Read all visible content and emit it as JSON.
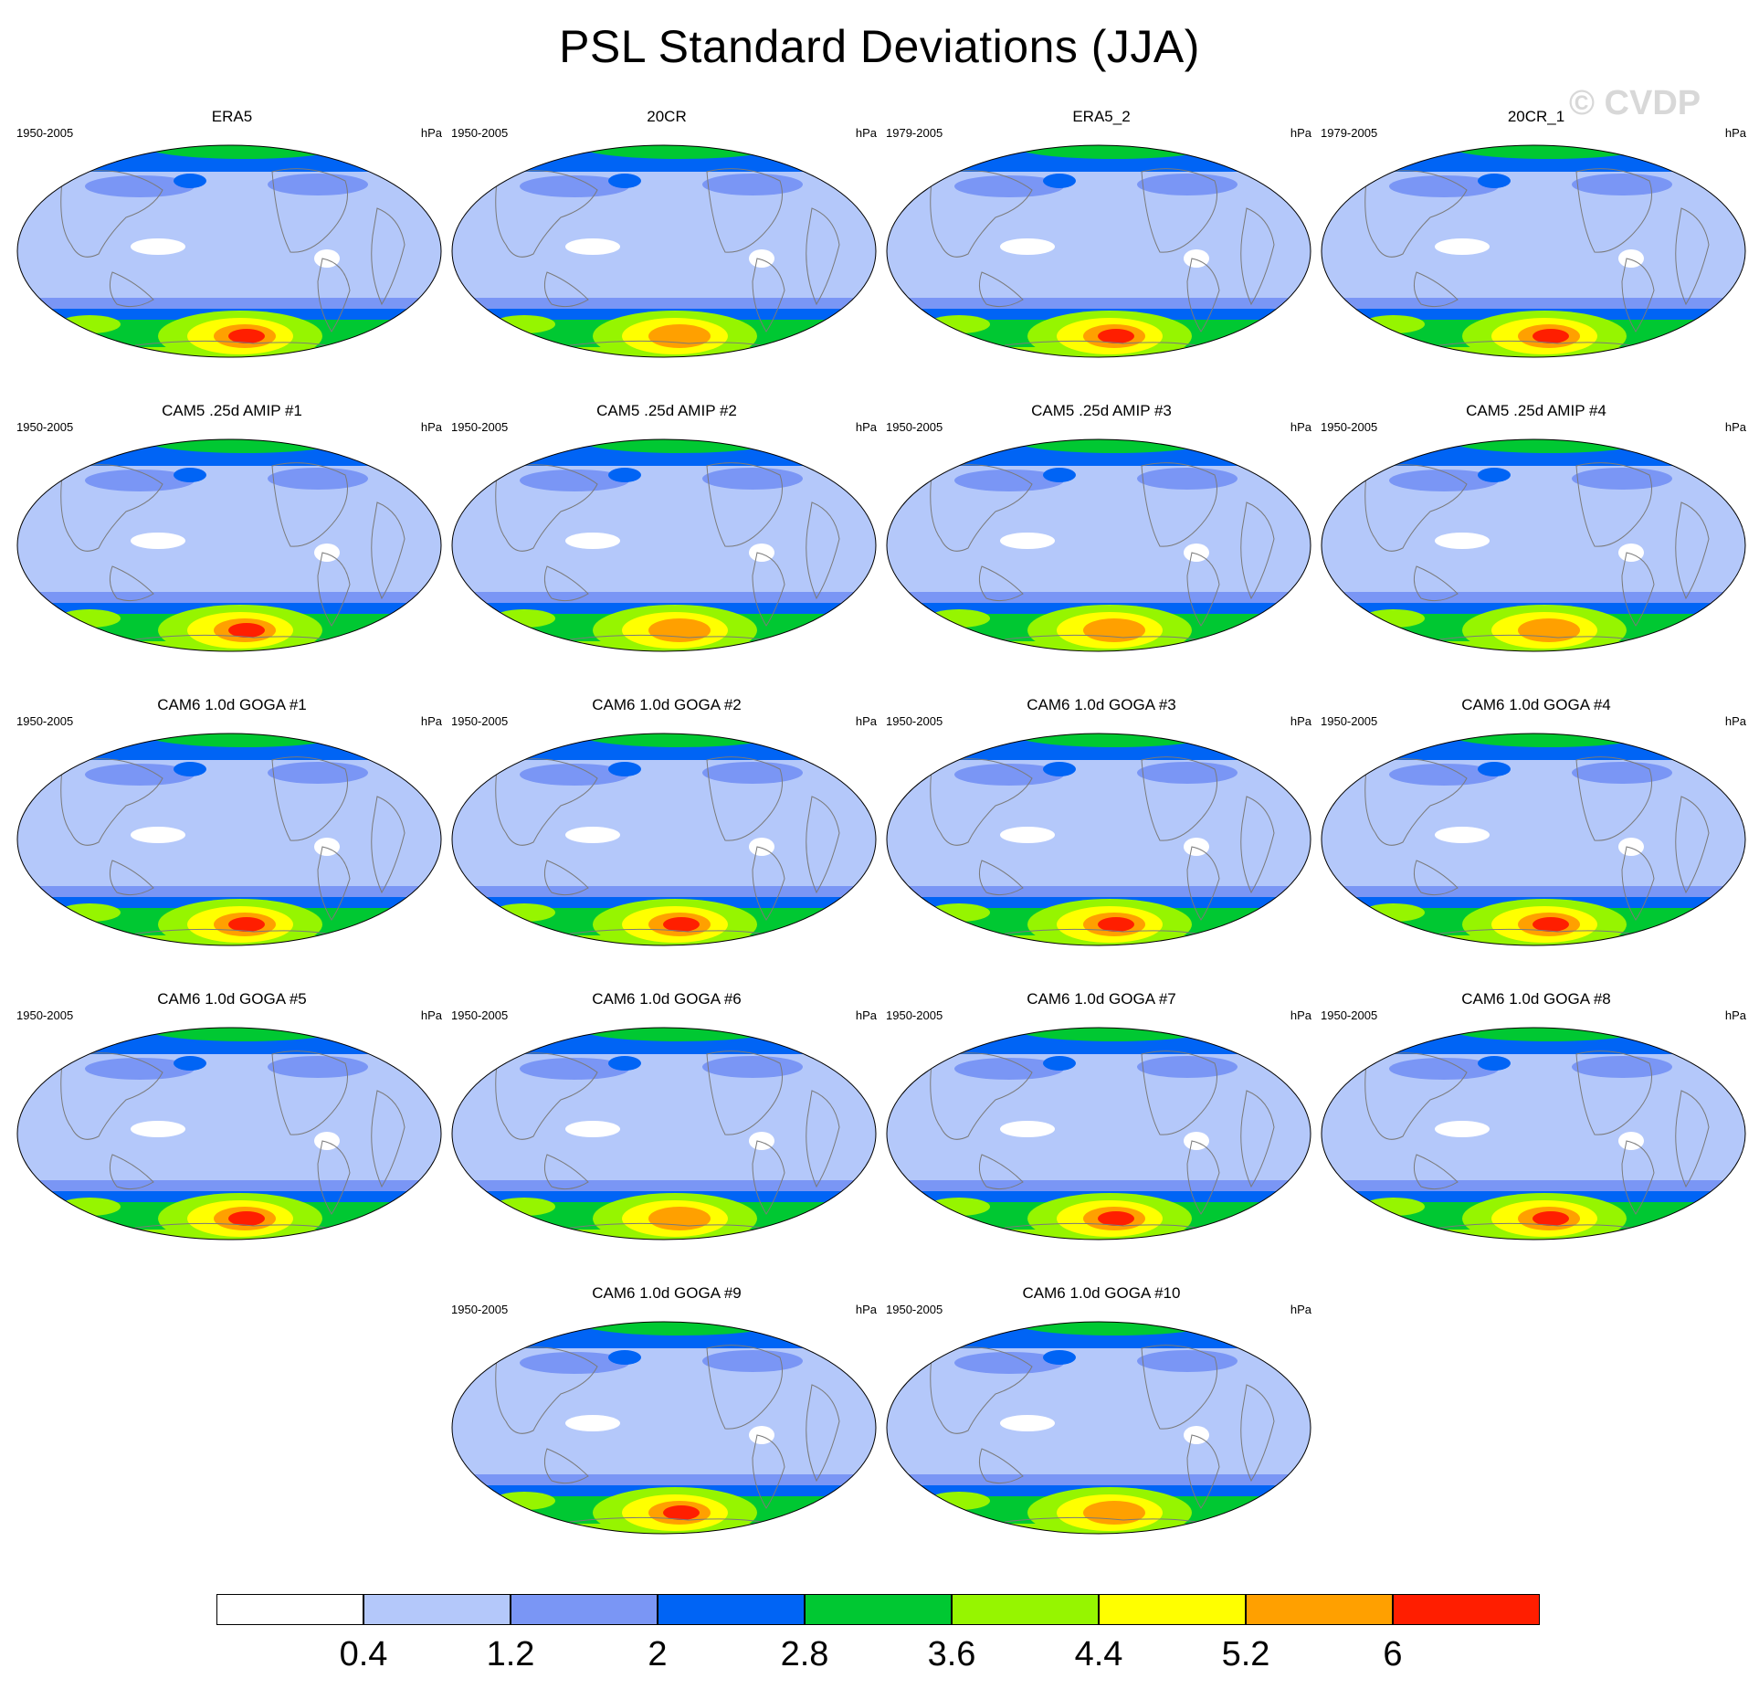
{
  "figure": {
    "title": "PSL Standard Deviations (JJA)",
    "watermark": "© CVDP",
    "units": "hPa"
  },
  "colors": {
    "levels": [
      "#ffffff",
      "#b4c8fa",
      "#7a96f5",
      "#0064f5",
      "#00c832",
      "#96f500",
      "#ffff00",
      "#ffa000",
      "#ff1e00"
    ],
    "coast": "#7a7a7a"
  },
  "panels": [
    {
      "title": "ERA5",
      "years": "1950-2005",
      "units": "hPa",
      "max_level": 8
    },
    {
      "title": "20CR",
      "years": "1950-2005",
      "units": "hPa",
      "max_level": 7
    },
    {
      "title": "ERA5_2",
      "years": "1979-2005",
      "units": "hPa",
      "max_level": 8
    },
    {
      "title": "20CR_1",
      "years": "1979-2005",
      "units": "hPa",
      "max_level": 8
    },
    {
      "title": "CAM5 .25d AMIP #1",
      "years": "1950-2005",
      "units": "hPa",
      "max_level": 8
    },
    {
      "title": "CAM5 .25d AMIP #2",
      "years": "1950-2005",
      "units": "hPa",
      "max_level": 7
    },
    {
      "title": "CAM5 .25d AMIP #3",
      "years": "1950-2005",
      "units": "hPa",
      "max_level": 7
    },
    {
      "title": "CAM5 .25d AMIP #4",
      "years": "1950-2005",
      "units": "hPa",
      "max_level": 7
    },
    {
      "title": "CAM6 1.0d GOGA #1",
      "years": "1950-2005",
      "units": "hPa",
      "max_level": 8
    },
    {
      "title": "CAM6 1.0d GOGA #2",
      "years": "1950-2005",
      "units": "hPa",
      "max_level": 8
    },
    {
      "title": "CAM6 1.0d GOGA #3",
      "years": "1950-2005",
      "units": "hPa",
      "max_level": 8
    },
    {
      "title": "CAM6 1.0d GOGA #4",
      "years": "1950-2005",
      "units": "hPa",
      "max_level": 8
    },
    {
      "title": "CAM6 1.0d GOGA #5",
      "years": "1950-2005",
      "units": "hPa",
      "max_level": 8
    },
    {
      "title": "CAM6 1.0d GOGA #6",
      "years": "1950-2005",
      "units": "hPa",
      "max_level": 7
    },
    {
      "title": "CAM6 1.0d GOGA #7",
      "years": "1950-2005",
      "units": "hPa",
      "max_level": 8
    },
    {
      "title": "CAM6 1.0d GOGA #8",
      "years": "1950-2005",
      "units": "hPa",
      "max_level": 8
    },
    {
      "title": "CAM6 1.0d GOGA #9",
      "years": "1950-2005",
      "units": "hPa",
      "max_level": 8
    },
    {
      "title": "CAM6 1.0d GOGA #10",
      "years": "1950-2005",
      "units": "hPa",
      "max_level": 7
    }
  ],
  "colorbar": {
    "labels": [
      "0.4",
      "1.2",
      "2",
      "2.8",
      "3.6",
      "4.4",
      "5.2",
      "6"
    ]
  }
}
